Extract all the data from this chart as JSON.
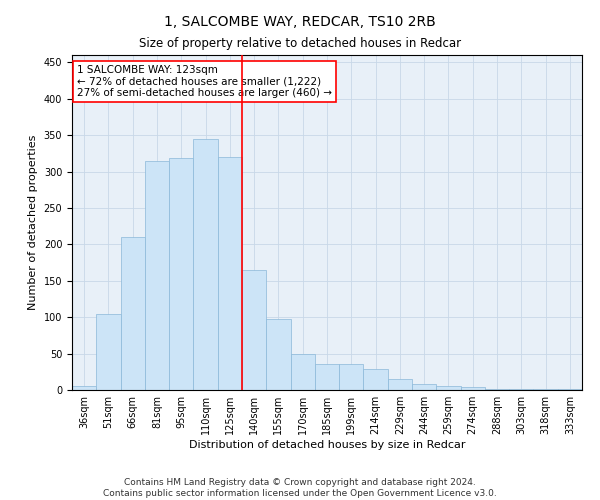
{
  "title": "1, SALCOMBE WAY, REDCAR, TS10 2RB",
  "subtitle": "Size of property relative to detached houses in Redcar",
  "xlabel": "Distribution of detached houses by size in Redcar",
  "ylabel": "Number of detached properties",
  "categories": [
    "36sqm",
    "51sqm",
    "66sqm",
    "81sqm",
    "95sqm",
    "110sqm",
    "125sqm",
    "140sqm",
    "155sqm",
    "170sqm",
    "185sqm",
    "199sqm",
    "214sqm",
    "229sqm",
    "244sqm",
    "259sqm",
    "274sqm",
    "288sqm",
    "303sqm",
    "318sqm",
    "333sqm"
  ],
  "values": [
    6,
    105,
    210,
    315,
    318,
    345,
    320,
    165,
    97,
    50,
    36,
    36,
    29,
    15,
    8,
    5,
    4,
    2,
    1,
    1,
    1
  ],
  "bar_color": "#cce4f7",
  "bar_edge_color": "#8ab8d8",
  "vline_x_index": 6,
  "vline_color": "red",
  "annotation_line1": "1 SALCOMBE WAY: 123sqm",
  "annotation_line2": "← 72% of detached houses are smaller (1,222)",
  "annotation_line3": "27% of semi-detached houses are larger (460) →",
  "annotation_box_color": "white",
  "annotation_box_edge_color": "red",
  "annotation_fontsize": 7.5,
  "footer_text": "Contains HM Land Registry data © Crown copyright and database right 2024.\nContains public sector information licensed under the Open Government Licence v3.0.",
  "title_fontsize": 10,
  "subtitle_fontsize": 8.5,
  "xlabel_fontsize": 8,
  "ylabel_fontsize": 8,
  "tick_fontsize": 7,
  "footer_fontsize": 6.5,
  "ylim": [
    0,
    460
  ],
  "yticks": [
    0,
    50,
    100,
    150,
    200,
    250,
    300,
    350,
    400,
    450
  ],
  "background_color": "#ffffff",
  "axes_bg_color": "#e8f0f8",
  "grid_color": "#c8d8e8",
  "fig_width": 6.0,
  "fig_height": 5.0
}
